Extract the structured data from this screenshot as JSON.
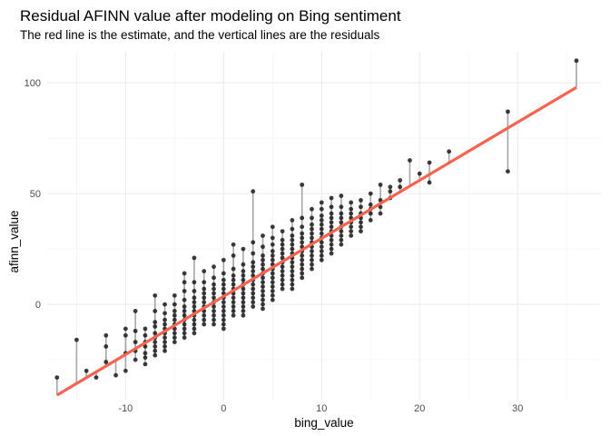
{
  "chart_data": {
    "type": "scatter",
    "title": "Residual AFINN value after modeling on Bing sentiment",
    "subtitle": "The red line is the estimate, and the vertical lines are the residuals",
    "xlabel": "bing_value",
    "ylabel": "afinn_value",
    "xlim": [
      -18,
      38.5
    ],
    "ylim": [
      -43,
      114
    ],
    "x_ticks": [
      -10,
      0,
      10,
      20,
      30
    ],
    "x_tick_labels": [
      "-10",
      "0",
      "10",
      "20",
      "30"
    ],
    "y_ticks": [
      0,
      50,
      100
    ],
    "y_tick_labels": [
      "0",
      "50",
      "100"
    ],
    "grid": true,
    "legend": "none",
    "fit": {
      "intercept": 3.6,
      "slope": 2.62,
      "x_range": [
        -17,
        36
      ]
    },
    "colors": {
      "points": "#1a1a1a",
      "fit_line": "#f8634f",
      "residuals": "#a6a6a6",
      "grid": "#ebebeb"
    },
    "points": [
      [
        -17,
        -33
      ],
      [
        -15,
        -16
      ],
      [
        -14,
        -30
      ],
      [
        -13,
        -33
      ],
      [
        -12,
        -14
      ],
      [
        -12,
        -19
      ],
      [
        -12,
        -26
      ],
      [
        -11,
        -32
      ],
      [
        -10,
        -11
      ],
      [
        -10,
        -14
      ],
      [
        -10,
        -22
      ],
      [
        -10,
        -30
      ],
      [
        -9,
        -3
      ],
      [
        -9,
        -12
      ],
      [
        -9,
        -17
      ],
      [
        -9,
        -21
      ],
      [
        -9,
        -25
      ],
      [
        -8,
        -11
      ],
      [
        -8,
        -14
      ],
      [
        -8,
        -17
      ],
      [
        -8,
        -19
      ],
      [
        -8,
        -22
      ],
      [
        -8,
        -24
      ],
      [
        -8,
        -27
      ],
      [
        -7,
        4
      ],
      [
        -7,
        -3
      ],
      [
        -7,
        -8
      ],
      [
        -7,
        -10
      ],
      [
        -7,
        -13
      ],
      [
        -7,
        -15
      ],
      [
        -7,
        -17
      ],
      [
        -7,
        -19
      ],
      [
        -7,
        -21
      ],
      [
        -7,
        -23
      ],
      [
        -6,
        0
      ],
      [
        -6,
        -4
      ],
      [
        -6,
        -7
      ],
      [
        -6,
        -9
      ],
      [
        -6,
        -11
      ],
      [
        -6,
        -13
      ],
      [
        -6,
        -15
      ],
      [
        -6,
        -17
      ],
      [
        -6,
        -19
      ],
      [
        -6,
        -21
      ],
      [
        -5,
        4
      ],
      [
        -5,
        0
      ],
      [
        -5,
        -3
      ],
      [
        -5,
        -5
      ],
      [
        -5,
        -7
      ],
      [
        -5,
        -9
      ],
      [
        -5,
        -11
      ],
      [
        -5,
        -13
      ],
      [
        -5,
        -15
      ],
      [
        -5,
        -17
      ],
      [
        -4,
        14
      ],
      [
        -4,
        10
      ],
      [
        -4,
        6
      ],
      [
        -4,
        2
      ],
      [
        -4,
        -1
      ],
      [
        -4,
        -3
      ],
      [
        -4,
        -5
      ],
      [
        -4,
        -7
      ],
      [
        -4,
        -9
      ],
      [
        -4,
        -11
      ],
      [
        -4,
        -13
      ],
      [
        -4,
        -15
      ],
      [
        -3,
        21
      ],
      [
        -3,
        10
      ],
      [
        -3,
        6
      ],
      [
        -3,
        3
      ],
      [
        -3,
        1
      ],
      [
        -3,
        -1
      ],
      [
        -3,
        -3
      ],
      [
        -3,
        -5
      ],
      [
        -3,
        -7
      ],
      [
        -3,
        -9
      ],
      [
        -3,
        -11
      ],
      [
        -3,
        -13
      ],
      [
        -2,
        15
      ],
      [
        -2,
        10
      ],
      [
        -2,
        7
      ],
      [
        -2,
        5
      ],
      [
        -2,
        3
      ],
      [
        -2,
        1
      ],
      [
        -2,
        -1
      ],
      [
        -2,
        -3
      ],
      [
        -2,
        -5
      ],
      [
        -2,
        -7
      ],
      [
        -2,
        -9
      ],
      [
        -1,
        17
      ],
      [
        -1,
        12
      ],
      [
        -1,
        9
      ],
      [
        -1,
        7
      ],
      [
        -1,
        5
      ],
      [
        -1,
        3
      ],
      [
        -1,
        1
      ],
      [
        -1,
        -1
      ],
      [
        -1,
        -3
      ],
      [
        -1,
        -5
      ],
      [
        -1,
        -7
      ],
      [
        -1,
        -9
      ],
      [
        0,
        20
      ],
      [
        0,
        14
      ],
      [
        0,
        11
      ],
      [
        0,
        9
      ],
      [
        0,
        7
      ],
      [
        0,
        5
      ],
      [
        0,
        3
      ],
      [
        0,
        1
      ],
      [
        0,
        -1
      ],
      [
        0,
        -3
      ],
      [
        0,
        -5
      ],
      [
        0,
        -7
      ],
      [
        0,
        -9
      ],
      [
        0,
        -11
      ],
      [
        1,
        27
      ],
      [
        1,
        22
      ],
      [
        1,
        16
      ],
      [
        1,
        13
      ],
      [
        1,
        11
      ],
      [
        1,
        9
      ],
      [
        1,
        7
      ],
      [
        1,
        5
      ],
      [
        1,
        3
      ],
      [
        1,
        1
      ],
      [
        1,
        -1
      ],
      [
        1,
        -3
      ],
      [
        1,
        -5
      ],
      [
        2,
        25
      ],
      [
        2,
        18
      ],
      [
        2,
        15
      ],
      [
        2,
        13
      ],
      [
        2,
        11
      ],
      [
        2,
        9
      ],
      [
        2,
        7
      ],
      [
        2,
        5
      ],
      [
        2,
        3
      ],
      [
        2,
        1
      ],
      [
        2,
        -1
      ],
      [
        2,
        -3
      ],
      [
        2,
        -5
      ],
      [
        3,
        51
      ],
      [
        3,
        28
      ],
      [
        3,
        23
      ],
      [
        3,
        19
      ],
      [
        3,
        17
      ],
      [
        3,
        15
      ],
      [
        3,
        13
      ],
      [
        3,
        11
      ],
      [
        3,
        9
      ],
      [
        3,
        7
      ],
      [
        3,
        5
      ],
      [
        3,
        3
      ],
      [
        3,
        1
      ],
      [
        3,
        -1
      ],
      [
        4,
        31
      ],
      [
        4,
        26
      ],
      [
        4,
        22
      ],
      [
        4,
        20
      ],
      [
        4,
        18
      ],
      [
        4,
        16
      ],
      [
        4,
        14
      ],
      [
        4,
        12
      ],
      [
        4,
        10
      ],
      [
        4,
        8
      ],
      [
        4,
        6
      ],
      [
        4,
        4
      ],
      [
        4,
        2
      ],
      [
        4,
        0
      ],
      [
        4,
        -2
      ],
      [
        5,
        35
      ],
      [
        5,
        30
      ],
      [
        5,
        27
      ],
      [
        5,
        24
      ],
      [
        5,
        22
      ],
      [
        5,
        20
      ],
      [
        5,
        18
      ],
      [
        5,
        16
      ],
      [
        5,
        14
      ],
      [
        5,
        12
      ],
      [
        5,
        10
      ],
      [
        5,
        8
      ],
      [
        5,
        6
      ],
      [
        5,
        4
      ],
      [
        5,
        2
      ],
      [
        6,
        33
      ],
      [
        6,
        29
      ],
      [
        6,
        27
      ],
      [
        6,
        25
      ],
      [
        6,
        23
      ],
      [
        6,
        21
      ],
      [
        6,
        19
      ],
      [
        6,
        17
      ],
      [
        6,
        15
      ],
      [
        6,
        13
      ],
      [
        6,
        11
      ],
      [
        6,
        9
      ],
      [
        6,
        7
      ],
      [
        7,
        38
      ],
      [
        7,
        34
      ],
      [
        7,
        31
      ],
      [
        7,
        29
      ],
      [
        7,
        27
      ],
      [
        7,
        25
      ],
      [
        7,
        23
      ],
      [
        7,
        21
      ],
      [
        7,
        19
      ],
      [
        7,
        17
      ],
      [
        7,
        15
      ],
      [
        7,
        13
      ],
      [
        7,
        11
      ],
      [
        7,
        9
      ],
      [
        7,
        7
      ],
      [
        8,
        54
      ],
      [
        8,
        39
      ],
      [
        8,
        35
      ],
      [
        8,
        32
      ],
      [
        8,
        30
      ],
      [
        8,
        28
      ],
      [
        8,
        26
      ],
      [
        8,
        24
      ],
      [
        8,
        22
      ],
      [
        8,
        20
      ],
      [
        8,
        18
      ],
      [
        8,
        16
      ],
      [
        8,
        14
      ],
      [
        8,
        12
      ],
      [
        9,
        43
      ],
      [
        9,
        39
      ],
      [
        9,
        36
      ],
      [
        9,
        34
      ],
      [
        9,
        32
      ],
      [
        9,
        30
      ],
      [
        9,
        28
      ],
      [
        9,
        26
      ],
      [
        9,
        24
      ],
      [
        9,
        22
      ],
      [
        9,
        20
      ],
      [
        9,
        18
      ],
      [
        9,
        16
      ],
      [
        10,
        46
      ],
      [
        10,
        43
      ],
      [
        10,
        40
      ],
      [
        10,
        38
      ],
      [
        10,
        36
      ],
      [
        10,
        34
      ],
      [
        10,
        32
      ],
      [
        10,
        30
      ],
      [
        10,
        28
      ],
      [
        10,
        26
      ],
      [
        10,
        24
      ],
      [
        10,
        22
      ],
      [
        10,
        20
      ],
      [
        11,
        48
      ],
      [
        11,
        44
      ],
      [
        11,
        41
      ],
      [
        11,
        39
      ],
      [
        11,
        37
      ],
      [
        11,
        35
      ],
      [
        11,
        33
      ],
      [
        11,
        31
      ],
      [
        11,
        29
      ],
      [
        11,
        27
      ],
      [
        11,
        25
      ],
      [
        11,
        23
      ],
      [
        12,
        49
      ],
      [
        12,
        44
      ],
      [
        12,
        41
      ],
      [
        12,
        39
      ],
      [
        12,
        37
      ],
      [
        12,
        35
      ],
      [
        12,
        33
      ],
      [
        12,
        31
      ],
      [
        12,
        29
      ],
      [
        12,
        27
      ],
      [
        13,
        46
      ],
      [
        13,
        43
      ],
      [
        13,
        41
      ],
      [
        13,
        39
      ],
      [
        13,
        37
      ],
      [
        13,
        35
      ],
      [
        13,
        33
      ],
      [
        13,
        31
      ],
      [
        14,
        47
      ],
      [
        14,
        44
      ],
      [
        14,
        41
      ],
      [
        14,
        39
      ],
      [
        14,
        37
      ],
      [
        14,
        35
      ],
      [
        14,
        33
      ],
      [
        15,
        50
      ],
      [
        15,
        45
      ],
      [
        15,
        43
      ],
      [
        15,
        41
      ],
      [
        15,
        38
      ],
      [
        16,
        54
      ],
      [
        16,
        47
      ],
      [
        16,
        44
      ],
      [
        16,
        41
      ],
      [
        17,
        51
      ],
      [
        17,
        48
      ],
      [
        17,
        53
      ],
      [
        18,
        53
      ],
      [
        18,
        56
      ],
      [
        19,
        65
      ],
      [
        20,
        59
      ],
      [
        21,
        64
      ],
      [
        21,
        55
      ],
      [
        23,
        69
      ],
      [
        29,
        87
      ],
      [
        29,
        60
      ],
      [
        36,
        110
      ]
    ]
  }
}
